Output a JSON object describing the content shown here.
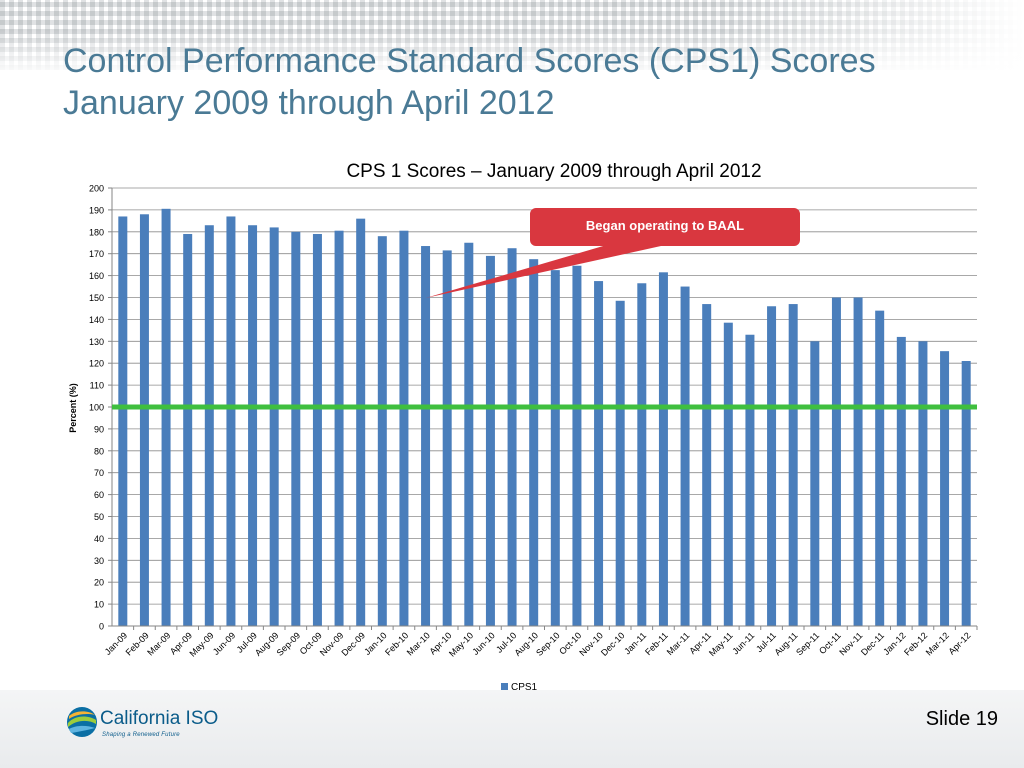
{
  "slide": {
    "title_line1": "Control Performance Standard Scores (CPS1) Scores",
    "title_line2": "January 2009 through April 2012",
    "slide_number": "Slide 19",
    "logo_name": "California ISO",
    "logo_tagline": "Shaping a Renewed Future"
  },
  "colors": {
    "title": "#4a7a95",
    "bar": "#4a7ebb",
    "reference_line": "#3fbf3f",
    "callout": "#d9373f"
  },
  "chart_data": {
    "type": "bar",
    "title": "CPS 1 Scores – January 2009 through April 2012",
    "xlabel": "",
    "ylabel": "Percent (%)",
    "ylim": [
      0,
      200
    ],
    "ytick_step": 10,
    "grid": true,
    "legend_position": "bottom",
    "categories": [
      "Jan-09",
      "Feb-09",
      "Mar-09",
      "Apr-09",
      "May-09",
      "Jun-09",
      "Jul-09",
      "Aug-09",
      "Sep-09",
      "Oct-09",
      "Nov-09",
      "Dec-09",
      "Jan-10",
      "Feb-10",
      "Mar-10",
      "Apr-10",
      "May-10",
      "Jun-10",
      "Jul-10",
      "Aug-10",
      "Sep-10",
      "Oct-10",
      "Nov-10",
      "Dec-10",
      "Jan-11",
      "Feb-11",
      "Mar-11",
      "Apr-11",
      "May-11",
      "Jun-11",
      "Jul-11",
      "Aug-11",
      "Sep-11",
      "Oct-11",
      "Nov-11",
      "Dec-11",
      "Jan-12",
      "Feb-12",
      "Mar-12",
      "Apr-12"
    ],
    "series": [
      {
        "name": "CPS1",
        "values": [
          187,
          188,
          190.5,
          179,
          183,
          187,
          183,
          182,
          180,
          179,
          180.5,
          186,
          178,
          180.5,
          173.5,
          171.5,
          175,
          169,
          172.5,
          167.5,
          162.5,
          164.5,
          157.5,
          148.5,
          156.5,
          161.5,
          155,
          147,
          138.5,
          133,
          146,
          147,
          130,
          150,
          150,
          144,
          132,
          130,
          125.5,
          121
        ]
      }
    ],
    "reference_line": {
      "value": 100
    },
    "annotation": {
      "text": "Began operating to BAAL",
      "points_to_category": "Mar-10"
    }
  }
}
